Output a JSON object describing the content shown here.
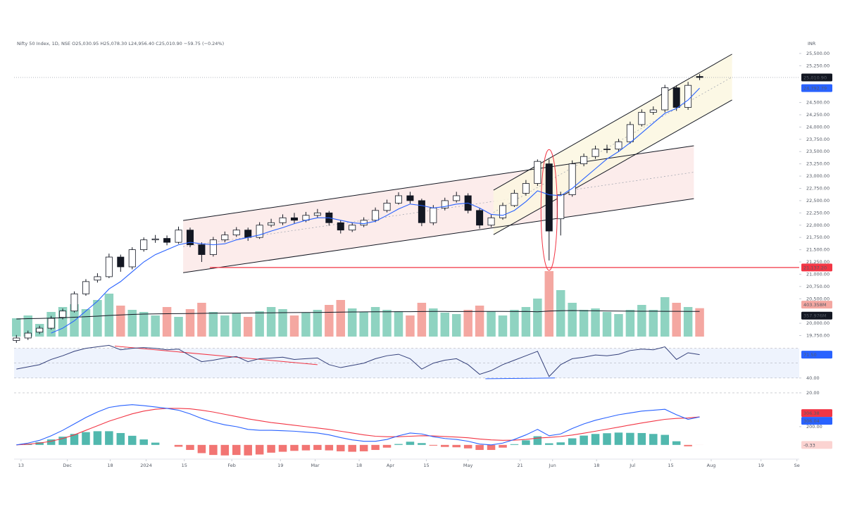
{
  "chart_data": [
    {
      "type": "candlestick",
      "title": "Nifty 50 Index, 1D, NSE  O25,030.95  H25,078.30  L24,956.40  C25,010.90  −59.75 (−0.24%)",
      "currency": "INR",
      "xlim": [
        -0.2,
        67.6
      ],
      "xticks": [
        {
          "value": 0.4,
          "label": "13"
        },
        {
          "value": 4.4,
          "label": "Dec"
        },
        {
          "value": 8.1,
          "label": "18"
        },
        {
          "value": 11.2,
          "label": "2024"
        },
        {
          "value": 14.5,
          "label": "15"
        },
        {
          "value": 18.6,
          "label": "Feb"
        },
        {
          "value": 22.8,
          "label": "19"
        },
        {
          "value": 25.8,
          "label": "Mar"
        },
        {
          "value": 29.6,
          "label": "18"
        },
        {
          "value": 32.3,
          "label": "Apr"
        },
        {
          "value": 35.4,
          "label": "15"
        },
        {
          "value": 39.0,
          "label": "May"
        },
        {
          "value": 43.5,
          "label": "21"
        },
        {
          "value": 46.3,
          "label": "Jun"
        },
        {
          "value": 50.1,
          "label": "18"
        },
        {
          "value": 53.2,
          "label": "Jul"
        },
        {
          "value": 56.5,
          "label": "15"
        },
        {
          "value": 60.0,
          "label": "Aug"
        },
        {
          "value": 64.3,
          "label": "19"
        },
        {
          "value": 67.4,
          "label": "Se"
        }
      ],
      "ylim": [
        19700,
        25800
      ],
      "yticks": [
        {
          "value": 25500,
          "label": "25,500.00"
        },
        {
          "value": 25250,
          "label": "25,250.00"
        },
        {
          "value": 24500,
          "label": "24,500.00"
        },
        {
          "value": 24250,
          "label": "24,250.00"
        },
        {
          "value": 24000,
          "label": "24,000.00"
        },
        {
          "value": 23750,
          "label": "23,750.00"
        },
        {
          "value": 23500,
          "label": "23,500.00"
        },
        {
          "value": 23250,
          "label": "23,250.00"
        },
        {
          "value": 23000,
          "label": "23,000.00"
        },
        {
          "value": 22750,
          "label": "22,750.00"
        },
        {
          "value": 22500,
          "label": "22,500.00"
        },
        {
          "value": 22250,
          "label": "22,250.00"
        },
        {
          "value": 22000,
          "label": "22,000.00"
        },
        {
          "value": 21750,
          "label": "21,750.00"
        },
        {
          "value": 21500,
          "label": "21,500.00"
        },
        {
          "value": 21250,
          "label": "21,250.00"
        },
        {
          "value": 21000,
          "label": "21,000.00"
        },
        {
          "value": 20750,
          "label": "20,750.00"
        },
        {
          "value": 20500,
          "label": "20,500.00"
        },
        {
          "value": 20000,
          "label": "20,000.00"
        },
        {
          "value": 19750,
          "label": "19,750.00"
        }
      ],
      "grid": false,
      "x": [
        0,
        1,
        2,
        3,
        4,
        5,
        6,
        7,
        8,
        9,
        10,
        11,
        12,
        13,
        14,
        15,
        16,
        17,
        18,
        19,
        20,
        21,
        22,
        23,
        24,
        25,
        26,
        27,
        28,
        29,
        30,
        31,
        32,
        33,
        34,
        35,
        36,
        37,
        38,
        39,
        40,
        41,
        42,
        43,
        44,
        45,
        46,
        47,
        48,
        49,
        50,
        51,
        52,
        53,
        54,
        55,
        56,
        57,
        58,
        59
      ],
      "open": [
        19650,
        19700,
        19820,
        19900,
        20120,
        20250,
        20600,
        20880,
        20950,
        21350,
        21150,
        21500,
        21700,
        21730,
        21650,
        21900,
        21600,
        21400,
        21700,
        21800,
        21900,
        21750,
        22000,
        22050,
        22150,
        22100,
        22200,
        22250,
        22050,
        21900,
        22000,
        22100,
        22300,
        22450,
        22600,
        22500,
        22050,
        22350,
        22500,
        22600,
        22300,
        22000,
        22150,
        22400,
        22650,
        22850,
        23250,
        22130,
        22620,
        23250,
        23400,
        23550,
        23550,
        23700,
        24050,
        24300,
        24350,
        24800,
        24400,
        25030.95
      ],
      "high": [
        19760,
        19850,
        19950,
        20150,
        20300,
        20650,
        20900,
        21020,
        21420,
        21400,
        21550,
        21750,
        21800,
        21790,
        21970,
        21950,
        21650,
        21760,
        21870,
        21960,
        21950,
        22060,
        22130,
        22220,
        22250,
        22270,
        22330,
        22290,
        22100,
        22060,
        22160,
        22360,
        22520,
        22670,
        22680,
        22540,
        22410,
        22560,
        22680,
        22650,
        22350,
        22210,
        22460,
        22720,
        22920,
        23340,
        23340,
        22680,
        23320,
        23460,
        23620,
        23640,
        23760,
        24110,
        24360,
        24420,
        24860,
        24850,
        24920,
        25078.3
      ],
      "low": [
        19600,
        19660,
        19780,
        19870,
        20080,
        20220,
        20560,
        20830,
        20920,
        21050,
        21100,
        21460,
        21640,
        21590,
        21620,
        21550,
        21250,
        21360,
        21650,
        21760,
        21680,
        21720,
        21960,
        22000,
        22030,
        22060,
        22150,
        21990,
        21830,
        21860,
        21960,
        22060,
        22260,
        22420,
        22440,
        21980,
        22000,
        22300,
        22460,
        22240,
        21930,
        21960,
        22110,
        22370,
        22600,
        22800,
        21280,
        21790,
        22580,
        23200,
        23350,
        23470,
        23500,
        23660,
        24010,
        24250,
        24300,
        24330,
        24350,
        24956.4
      ],
      "close": [
        19700,
        19800,
        19900,
        20100,
        20250,
        20600,
        20850,
        20950,
        21350,
        21150,
        21500,
        21700,
        21720,
        21650,
        21900,
        21600,
        21400,
        21700,
        21800,
        21900,
        21750,
        22000,
        22050,
        22150,
        22100,
        22200,
        22250,
        22050,
        21900,
        22000,
        22100,
        22300,
        22450,
        22600,
        22500,
        22050,
        22350,
        22500,
        22600,
        22300,
        22000,
        22150,
        22400,
        22650,
        22850,
        23300,
        21880,
        22620,
        23250,
        23400,
        23550,
        23550,
        23700,
        24050,
        24300,
        24350,
        24800,
        24400,
        24850,
        25010.9
      ],
      "up_color": "#ffffff",
      "down_color": "#131722",
      "last_label": "25,010.90",
      "moving_average": {
        "color": "#2962ff",
        "values": [
          null,
          null,
          null,
          19800,
          19900,
          20050,
          20250,
          20450,
          20700,
          20850,
          21050,
          21250,
          21400,
          21500,
          21600,
          21650,
          21620,
          21600,
          21620,
          21700,
          21750,
          21800,
          21880,
          21950,
          22030,
          22100,
          22150,
          22150,
          22100,
          22050,
          22030,
          22080,
          22200,
          22330,
          22430,
          22400,
          22350,
          22380,
          22430,
          22450,
          22350,
          22220,
          22200,
          22300,
          22480,
          22700,
          22620,
          22600,
          22750,
          22950,
          23150,
          23350,
          23500,
          23680,
          23880,
          24080,
          24280,
          24380,
          24550,
          24792.79
        ],
        "last_label": "24,792.79"
      },
      "volume": {
        "ylim": [
          0,
          2200
        ],
        "values": [
          260,
          300,
          180,
          350,
          420,
          460,
          390,
          520,
          610,
          440,
          380,
          350,
          300,
          420,
          280,
          390,
          480,
          350,
          300,
          330,
          280,
          360,
          420,
          390,
          300,
          340,
          380,
          450,
          520,
          400,
          350,
          420,
          380,
          360,
          300,
          480,
          400,
          340,
          320,
          380,
          440,
          360,
          300,
          380,
          420,
          540,
          930,
          660,
          480,
          380,
          400,
          350,
          320,
          380,
          450,
          380,
          560,
          480,
          420,
          403.358
        ],
        "up_color": "#8fd3c1",
        "down_color": "#f4a7a1",
        "last_label": "403.358M",
        "average": {
          "color": "#131722",
          "values": [
            250,
            255,
            258,
            262,
            268,
            275,
            282,
            290,
            300,
            308,
            315,
            320,
            322,
            325,
            326,
            328,
            330,
            332,
            333,
            334,
            335,
            336,
            338,
            340,
            341,
            342,
            343,
            345,
            348,
            350,
            351,
            352,
            353,
            354,
            354,
            356,
            357,
            357,
            356,
            356,
            357,
            358,
            357,
            356,
            357,
            352,
            362,
            368,
            370,
            368,
            366,
            364,
            362,
            361,
            360,
            360,
            359,
            359,
            358,
            357.976
          ],
          "last_label": "357.976M"
        }
      },
      "channels": [
        {
          "color": "#131722",
          "fill": "#fbe9e7",
          "upper": {
            "x": [
              14.4,
              58.5
            ],
            "y": [
              22095,
              23618
            ]
          },
          "lower": {
            "x": [
              14.4,
              58.5
            ],
            "y": [
              21032,
              22540
            ]
          }
        },
        {
          "color": "#131722",
          "fill": "#fbf7e1",
          "upper": {
            "x": [
              41.2,
              61.8
            ],
            "y": [
              22713,
              25486
            ]
          },
          "lower": {
            "x": [
              41.2,
              61.8
            ],
            "y": [
              21807,
              24552
            ]
          }
        }
      ],
      "support": {
        "y": 21137.2,
        "x": 16.7,
        "color": "#f23645",
        "label": "21,137.20"
      }
    },
    {
      "type": "rsi",
      "ylim": [
        18,
        92
      ],
      "yticks": [
        {
          "value": 40,
          "label": "40.00"
        },
        {
          "value": 20,
          "label": "20.00"
        }
      ],
      "levels": [
        80,
        60
      ],
      "grid": true,
      "band_color": "#eef3fd",
      "color": "#34407a",
      "values": [
        52,
        55,
        58,
        65,
        70,
        76,
        80,
        82,
        84,
        78,
        80,
        81,
        80,
        78,
        79,
        70,
        62,
        64,
        67,
        69,
        62,
        66,
        67,
        68,
        65,
        66,
        67,
        58,
        54,
        57,
        60,
        66,
        70,
        72,
        66,
        52,
        60,
        64,
        66,
        58,
        45,
        50,
        58,
        64,
        70,
        76,
        42,
        58,
        66,
        68,
        71,
        70,
        72,
        77,
        79,
        78,
        82,
        65,
        74,
        71.5
      ],
      "last_label": "71.50",
      "trendlines": [
        {
          "color": "#f23645",
          "x": [
            8.5,
            26
          ],
          "y": [
            83,
            58
          ]
        },
        {
          "color": "#2962ff",
          "x": [
            40.5,
            46.5
          ],
          "y": [
            39,
            40
          ]
        }
      ]
    },
    {
      "type": "macd",
      "ylim": [
        -140,
        515
      ],
      "yticks": [
        {
          "value": 200,
          "label": "200.00"
        }
      ],
      "grid": false,
      "macd": {
        "color": "#2962ff",
        "values": [
          0,
          20,
          50,
          100,
          160,
          230,
          300,
          360,
          410,
          430,
          440,
          430,
          415,
          400,
          380,
          340,
          290,
          250,
          220,
          200,
          170,
          160,
          160,
          155,
          150,
          140,
          130,
          110,
          80,
          55,
          40,
          40,
          60,
          100,
          130,
          120,
          90,
          70,
          60,
          40,
          10,
          0,
          20,
          60,
          110,
          170,
          100,
          120,
          180,
          230,
          270,
          300,
          330,
          350,
          370,
          380,
          390,
          330,
          280,
          306.04
        ],
        "last_label": "306.04"
      },
      "signal": {
        "color": "#f23645",
        "values": [
          0,
          8,
          20,
          40,
          70,
          110,
          160,
          210,
          260,
          300,
          340,
          370,
          390,
          400,
          400,
          395,
          380,
          360,
          335,
          310,
          285,
          265,
          245,
          230,
          215,
          200,
          185,
          170,
          150,
          130,
          110,
          95,
          90,
          90,
          95,
          100,
          98,
          92,
          86,
          78,
          65,
          55,
          50,
          52,
          60,
          75,
          82,
          92,
          108,
          128,
          150,
          172,
          195,
          218,
          240,
          260,
          280,
          290,
          295,
          306.38
        ],
        "last_label": "306.38"
      },
      "histogram": {
        "up_color": "#26a69a",
        "down_color": "#ef5350",
        "values": [
          0,
          12,
          30,
          60,
          90,
          120,
          140,
          150,
          150,
          130,
          100,
          60,
          25,
          0,
          -20,
          -55,
          -90,
          -110,
          -115,
          -110,
          -115,
          -105,
          -85,
          -75,
          -65,
          -60,
          -55,
          -60,
          -70,
          -75,
          -70,
          -55,
          -30,
          10,
          35,
          20,
          -8,
          -22,
          -26,
          -38,
          -55,
          -55,
          -30,
          8,
          50,
          95,
          18,
          28,
          72,
          102,
          120,
          128,
          135,
          132,
          130,
          120,
          110,
          40,
          -15,
          -0.33
        ],
        "last_label": "-0.33"
      }
    }
  ]
}
